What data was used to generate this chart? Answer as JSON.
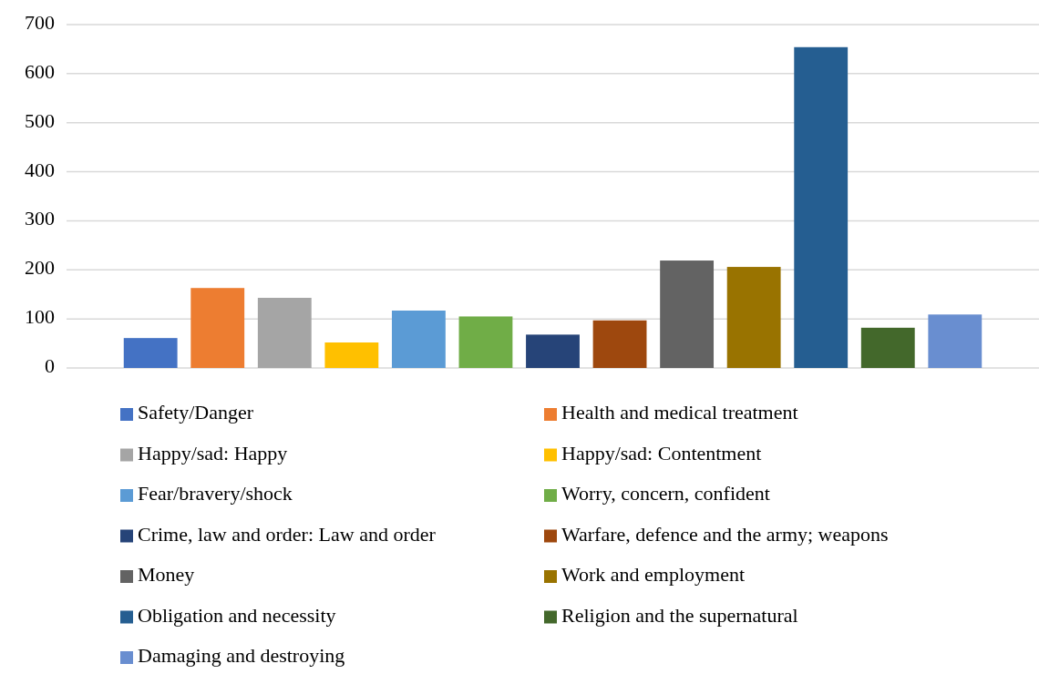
{
  "chart_data": {
    "type": "bar",
    "categories": [
      null
    ],
    "series": [
      {
        "name": "Safety/Danger",
        "color": "#4472c4",
        "values": [
          61
        ]
      },
      {
        "name": "Health and medical treatment",
        "color": "#ed7d31",
        "values": [
          163
        ]
      },
      {
        "name": "Happy/sad: Happy",
        "color": "#a5a5a5",
        "values": [
          143
        ]
      },
      {
        "name": "Happy/sad: Contentment",
        "color": "#ffc000",
        "values": [
          52
        ]
      },
      {
        "name": "Fear/bravery/shock",
        "color": "#5b9bd5",
        "values": [
          117
        ]
      },
      {
        "name": "Worry, concern, confident",
        "color": "#70ad47",
        "values": [
          105
        ]
      },
      {
        "name": "Crime, law and order: Law and order",
        "color": "#264478",
        "values": [
          68
        ]
      },
      {
        "name": "Warfare, defence and the army; weapons",
        "color": "#9e480e",
        "values": [
          97
        ]
      },
      {
        "name": "Money",
        "color": "#636363",
        "values": [
          219
        ]
      },
      {
        "name": "Work and employment",
        "color": "#997300",
        "values": [
          206
        ]
      },
      {
        "name": "Obligation and necessity",
        "color": "#255e91",
        "values": [
          654
        ]
      },
      {
        "name": "Religion and the supernatural",
        "color": "#43682b",
        "values": [
          82
        ]
      },
      {
        "name": "Damaging and destroying",
        "color": "#698ed0",
        "values": [
          109
        ]
      }
    ],
    "ylim": [
      0,
      700
    ],
    "yticks": [
      0,
      100,
      200,
      300,
      400,
      500,
      600,
      700
    ],
    "grid": "y",
    "legend": "bottom"
  }
}
